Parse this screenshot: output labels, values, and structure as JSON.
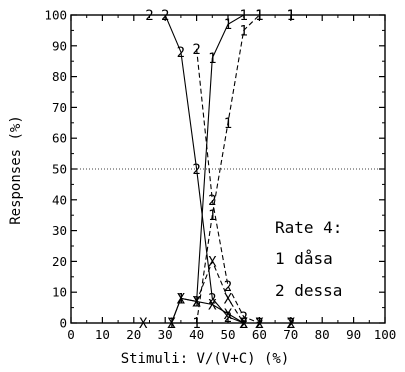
{
  "chart_data": {
    "type": "line",
    "title": "",
    "xlabel": "Stimuli: V/(V+C) (%)",
    "ylabel": "Responses (%)",
    "xlim": [
      0,
      100
    ],
    "ylim": [
      0,
      100
    ],
    "xticks": [
      "0",
      "10",
      "20",
      "30",
      "40",
      "50",
      "60",
      "70",
      "80",
      "90",
      "100"
    ],
    "yticks": [
      "0",
      "10",
      "20",
      "30",
      "40",
      "50",
      "60",
      "70",
      "80",
      "90",
      "100"
    ],
    "reference_line": 50,
    "legend": {
      "title": "Rate 4:",
      "entries": [
        "1 dåsa",
        "2 dessa"
      ],
      "placement": "right-middle"
    },
    "series": [
      {
        "name": "1",
        "label_marker": "1",
        "dash": "solid",
        "points": [
          [
            32,
            0
          ],
          [
            35,
            8
          ],
          [
            40,
            7
          ],
          [
            45,
            86
          ],
          [
            50,
            97
          ],
          [
            55,
            100
          ],
          [
            60,
            100
          ],
          [
            70,
            100
          ]
        ]
      },
      {
        "name": "1",
        "label_marker": "1",
        "dash": "dashed",
        "points": [
          [
            40,
            0
          ],
          [
            45,
            35
          ],
          [
            50,
            65
          ],
          [
            55,
            95
          ],
          [
            60,
            100
          ],
          [
            70,
            100
          ]
        ]
      },
      {
        "name": "2",
        "label_marker": "2",
        "dash": "solid",
        "points": [
          [
            25,
            100
          ],
          [
            30,
            100
          ],
          [
            35,
            88
          ],
          [
            40,
            50
          ],
          [
            45,
            8
          ],
          [
            50,
            2
          ],
          [
            55,
            0
          ],
          [
            60,
            0
          ],
          [
            70,
            0
          ]
        ]
      },
      {
        "name": "2",
        "label_marker": "2",
        "dash": "dashed",
        "points": [
          [
            40,
            89
          ],
          [
            45,
            40
          ],
          [
            50,
            12
          ],
          [
            55,
            2
          ],
          [
            60,
            0
          ],
          [
            70,
            0
          ]
        ]
      },
      {
        "name": "X",
        "label_marker": "X",
        "dash": "solid",
        "points": [
          [
            23,
            0
          ],
          [
            32,
            0
          ],
          [
            35,
            8
          ],
          [
            40,
            7
          ],
          [
            45,
            6
          ],
          [
            50,
            3
          ],
          [
            55,
            0
          ]
        ]
      },
      {
        "name": "X",
        "label_marker": "X",
        "dash": "dashed",
        "points": [
          [
            40,
            7
          ],
          [
            45,
            20
          ],
          [
            50,
            8
          ],
          [
            55,
            0
          ],
          [
            60,
            0
          ],
          [
            70,
            0
          ]
        ]
      }
    ]
  }
}
